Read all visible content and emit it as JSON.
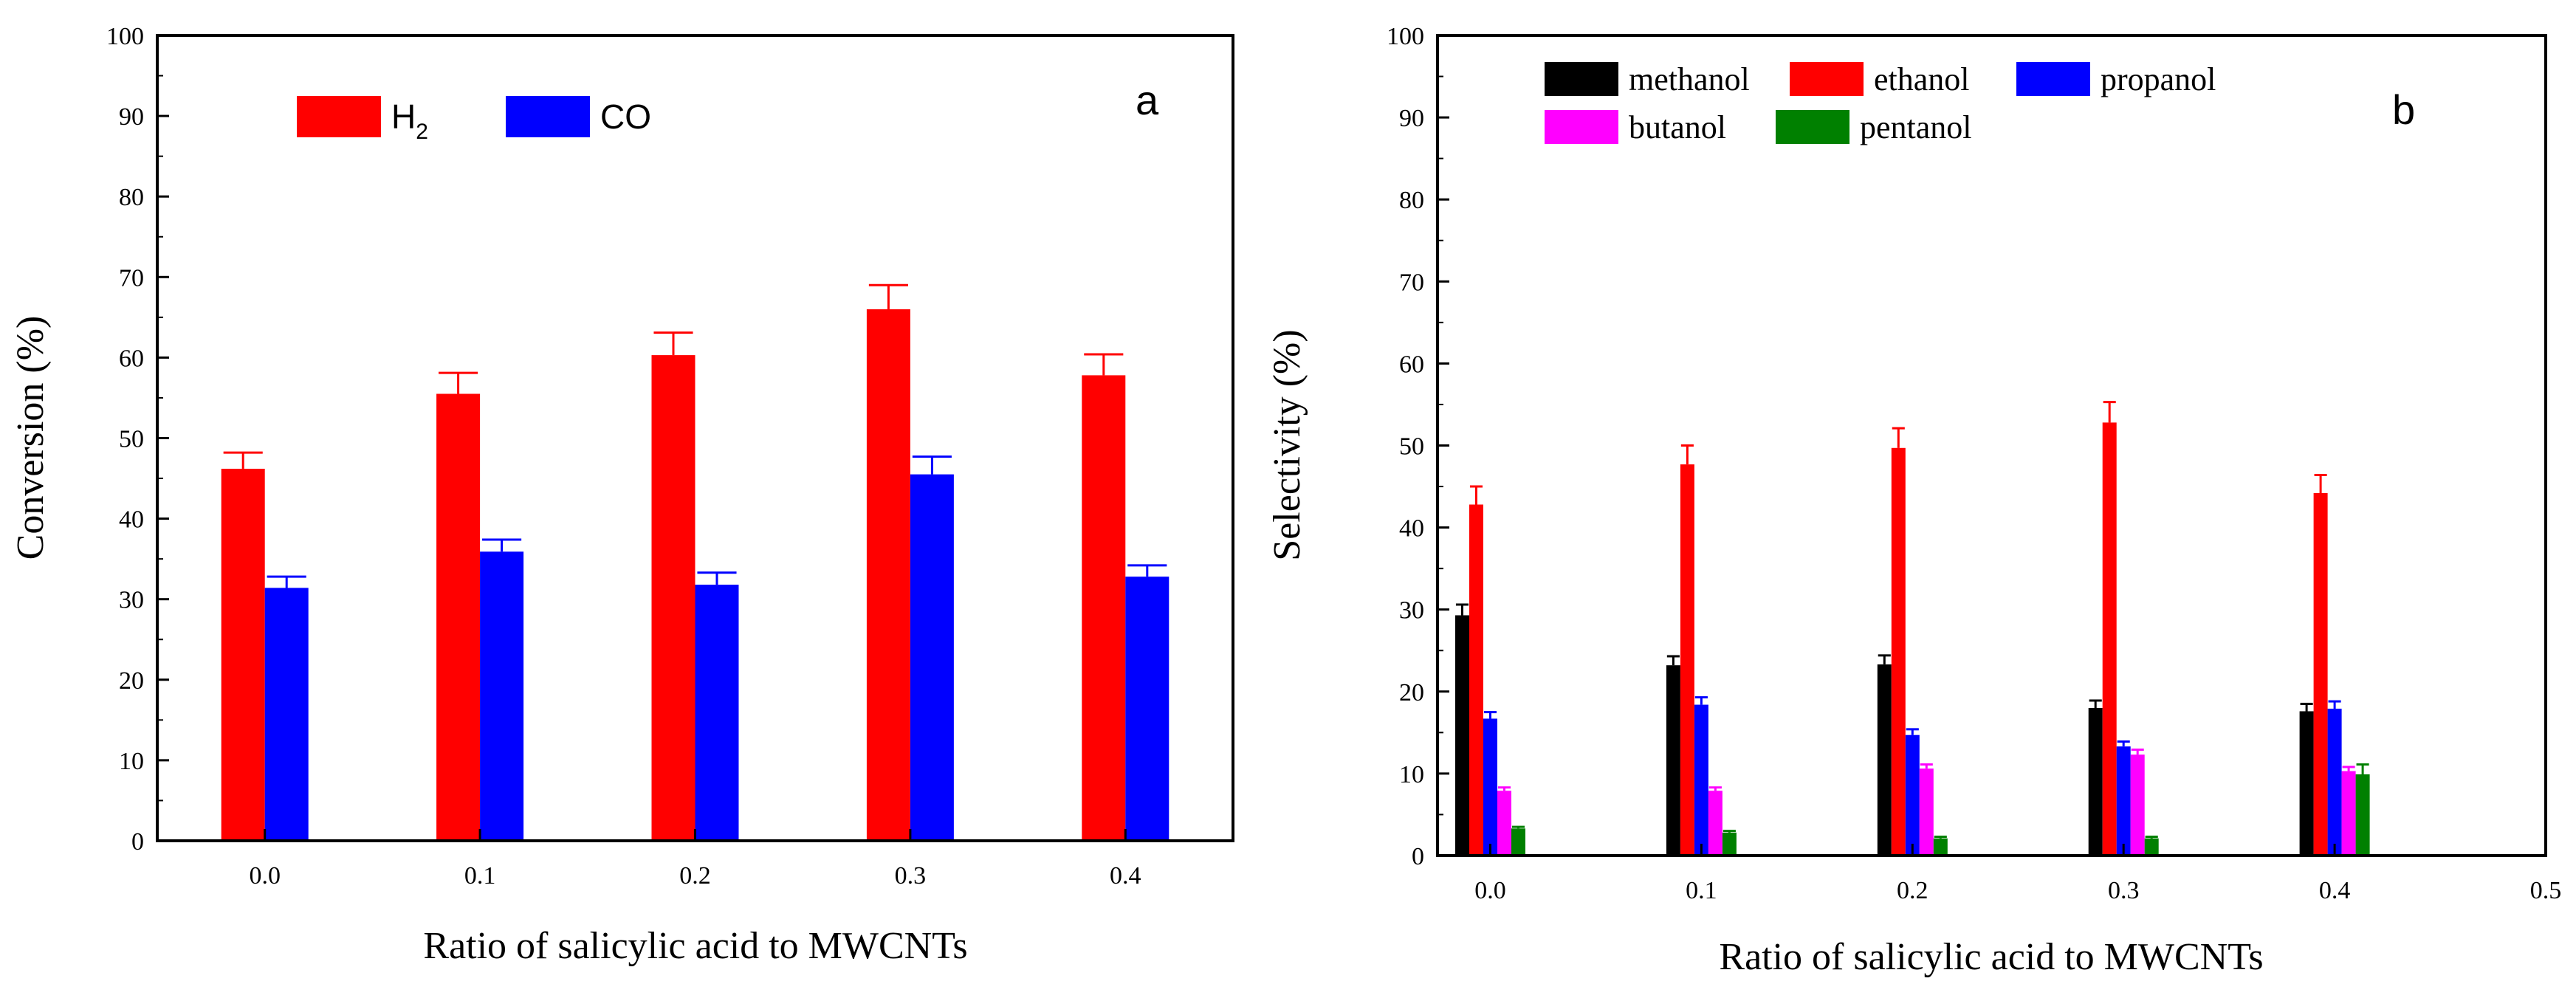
{
  "chart_data": [
    {
      "type": "bar",
      "panel_label": "a",
      "title": "",
      "xlabel": "Ratio of salicylic acid to MWCNTs",
      "ylabel": "Conversion (%)",
      "categories": [
        "0.0",
        "0.1",
        "0.2",
        "0.3",
        "0.4"
      ],
      "x_values": [
        0.0,
        0.1,
        0.2,
        0.3,
        0.4
      ],
      "xlim": [
        -0.05,
        0.45
      ],
      "ylim": [
        0,
        100
      ],
      "yticks": [
        0,
        10,
        20,
        30,
        40,
        50,
        60,
        70,
        80,
        90,
        100
      ],
      "series": [
        {
          "name": "H2",
          "label_main": "H",
          "label_sub": "2",
          "color": "#ff0000",
          "values": [
            46.2,
            55.5,
            60.3,
            66.0,
            57.8
          ],
          "errors": [
            2.0,
            2.6,
            2.8,
            3.0,
            2.6
          ]
        },
        {
          "name": "CO",
          "label_main": "CO",
          "label_sub": "",
          "color": "#0000ff",
          "values": [
            31.4,
            35.9,
            31.8,
            45.5,
            32.8
          ],
          "errors": [
            1.4,
            1.5,
            1.5,
            2.2,
            1.4
          ]
        }
      ],
      "legend": "top-left"
    },
    {
      "type": "bar",
      "panel_label": "b",
      "title": "",
      "xlabel": "Ratio of salicylic acid to MWCNTs",
      "ylabel": "Selectivity (%)",
      "categories": [
        "0.0",
        "0.1",
        "0.2",
        "0.3",
        "0.4",
        "0.5"
      ],
      "x_values": [
        0.0,
        0.1,
        0.2,
        0.3,
        0.4
      ],
      "xticks": [
        0.0,
        0.1,
        0.2,
        0.3,
        0.4,
        0.5
      ],
      "xlim": [
        -0.025,
        0.5
      ],
      "ylim": [
        0,
        100
      ],
      "yticks": [
        0,
        10,
        20,
        30,
        40,
        50,
        60,
        70,
        80,
        90,
        100
      ],
      "series": [
        {
          "name": "methanol",
          "color": "#000000",
          "values": [
            29.3,
            23.2,
            23.3,
            18.0,
            17.6
          ],
          "errors": [
            1.3,
            1.1,
            1.1,
            0.9,
            0.9
          ]
        },
        {
          "name": "ethanol",
          "color": "#ff0000",
          "values": [
            42.8,
            47.7,
            49.7,
            52.8,
            44.2
          ],
          "errors": [
            2.2,
            2.3,
            2.4,
            2.5,
            2.2
          ]
        },
        {
          "name": "propanol",
          "color": "#0000ff",
          "values": [
            16.7,
            18.4,
            14.7,
            13.3,
            17.9
          ],
          "errors": [
            0.8,
            0.9,
            0.7,
            0.6,
            0.9
          ]
        },
        {
          "name": "butanol",
          "color": "#ff00ff",
          "values": [
            7.9,
            7.9,
            10.6,
            12.3,
            10.3
          ],
          "errors": [
            0.4,
            0.4,
            0.5,
            0.6,
            0.5
          ]
        },
        {
          "name": "pentanol",
          "color": "#008000",
          "values": [
            3.3,
            2.8,
            2.1,
            2.1,
            9.9
          ],
          "errors": [
            0.2,
            0.2,
            0.2,
            0.2,
            1.2
          ]
        }
      ],
      "legend": "top-left"
    }
  ]
}
